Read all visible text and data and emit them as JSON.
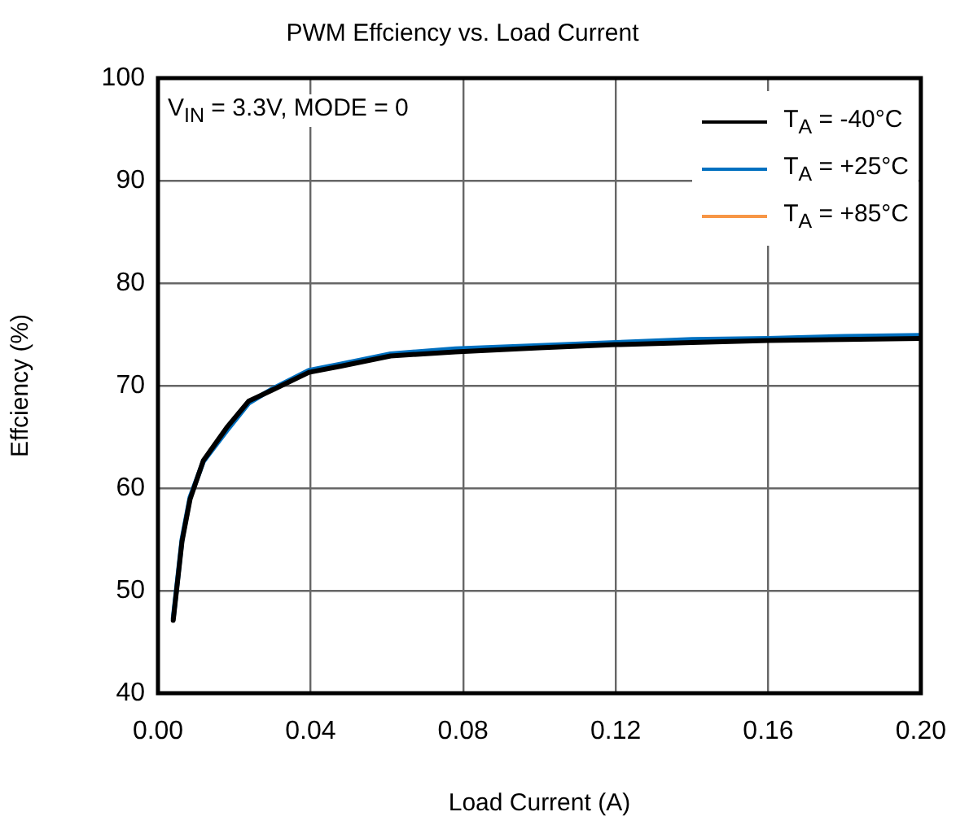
{
  "chart_data": {
    "type": "line",
    "title": "PWM Effciency vs. Load Current",
    "xlabel": "Load Current (A)",
    "ylabel": "Effciency (%)",
    "annotations": [
      "V$_{IN}$ = 3.3V, MODE = 0"
    ],
    "series": [
      {
        "name": "T$_{A}$ = -40°C",
        "color": "#000000",
        "x": [
          0.004,
          0.0063,
          0.0084,
          0.0119,
          0.018,
          0.0238,
          0.0296,
          0.0396,
          0.048,
          0.061,
          0.078,
          0.1,
          0.12,
          0.14,
          0.16,
          0.18,
          0.2
        ],
        "values": [
          47.1,
          54.8,
          58.9,
          62.7,
          65.9,
          68.5,
          69.5,
          71.3,
          71.9,
          72.9,
          73.3,
          73.7,
          74.0,
          74.2,
          74.4,
          74.5,
          74.6
        ]
      },
      {
        "name": "T$_{A}$ = +25°C",
        "color": "#0070c0",
        "x": [
          0.004,
          0.0063,
          0.0084,
          0.0119,
          0.018,
          0.0238,
          0.0296,
          0.0396,
          0.048,
          0.061,
          0.078,
          0.1,
          0.12,
          0.14,
          0.16,
          0.18,
          0.2
        ],
        "values": [
          47.3,
          55.0,
          59.1,
          62.6,
          65.6,
          68.3,
          69.6,
          71.5,
          72.1,
          73.1,
          73.6,
          73.9,
          74.2,
          74.5,
          74.6,
          74.8,
          74.9
        ]
      },
      {
        "name": "T$_{A}$ = +85°C",
        "color": "#f79646",
        "values": [
          null,
          null,
          null,
          null,
          null,
          null,
          null,
          null,
          null,
          null,
          null,
          null,
          null,
          null,
          null,
          null,
          null
        ]
      }
    ],
    "xlim": [
      0,
      0.2
    ],
    "xticks": [
      {
        "value": 0,
        "label": "0.00"
      },
      {
        "value": 0.04,
        "label": "0.04"
      },
      {
        "value": 0.08,
        "label": "0.08"
      },
      {
        "value": 0.12,
        "label": "0.12"
      },
      {
        "value": 0.16,
        "label": "0.16"
      },
      {
        "value": 0.2,
        "label": "0.20"
      }
    ],
    "ylim": [
      40,
      100
    ],
    "yticks": [
      40,
      50,
      60,
      70,
      80,
      90,
      100
    ],
    "grid": true,
    "legend": "top right",
    "marker": "none",
    "line_style": "solid"
  }
}
